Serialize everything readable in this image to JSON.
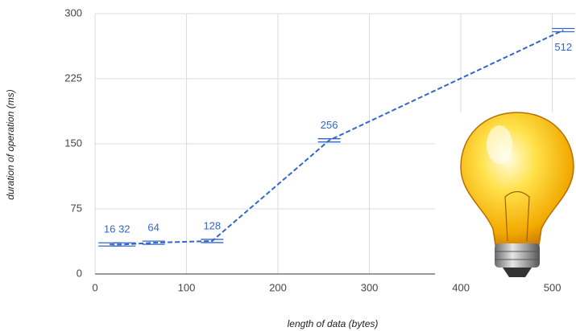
{
  "chart_data": {
    "type": "line",
    "x_label": "length of data (bytes)",
    "y_label": "duration of operation (ms)",
    "x": [
      16,
      32,
      64,
      128,
      256,
      512
    ],
    "series": [
      {
        "color": "#3366cc",
        "values": [
          34,
          34,
          36,
          38,
          154,
          281
        ]
      }
    ],
    "xlim": [
      0,
      525
    ],
    "ylim": [
      0,
      300
    ],
    "xticks": [
      0,
      100,
      200,
      300,
      400,
      500
    ],
    "yticks": [
      0,
      75,
      150,
      225,
      300
    ],
    "grid": true
  }
}
